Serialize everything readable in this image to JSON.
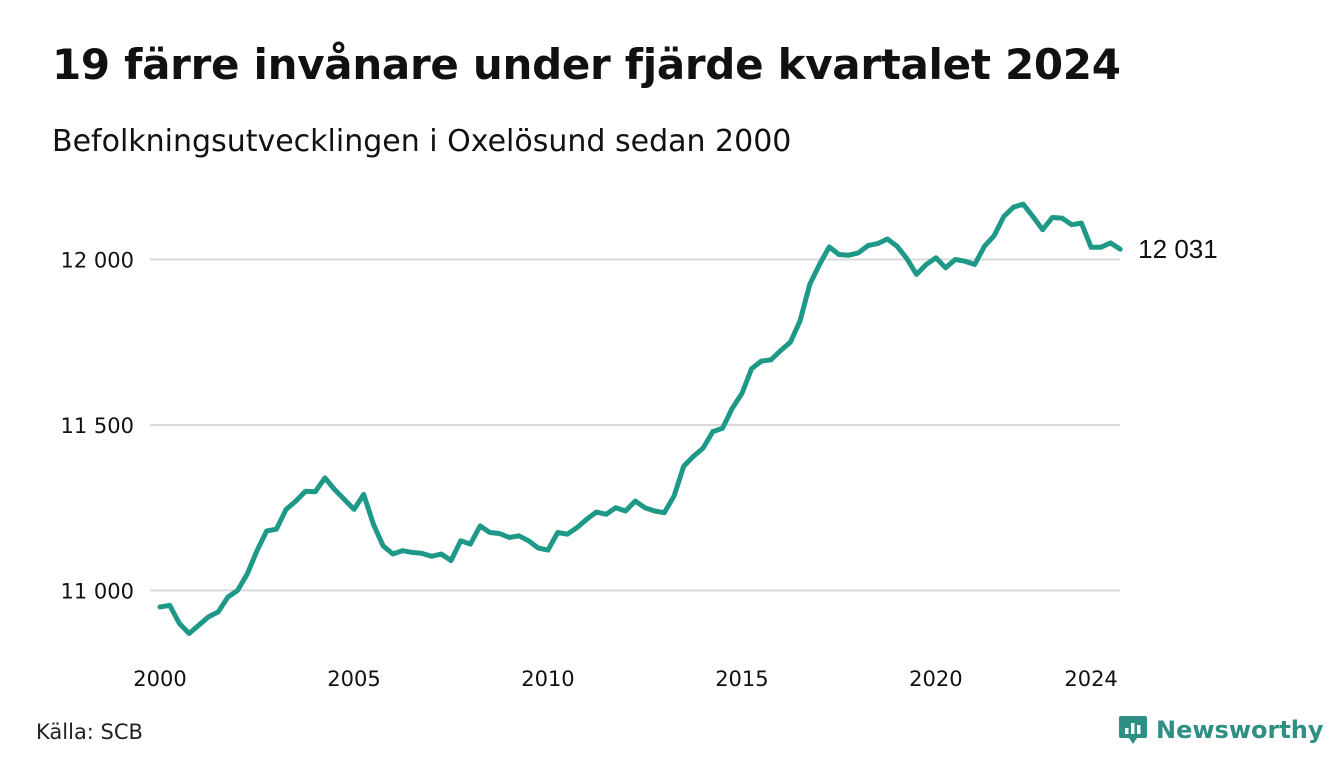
{
  "title": "19 färre invånare under fjärde kvartalet 2024",
  "subtitle": "Befolkningsutvecklingen i Oxelösund sedan 2000",
  "source": "Källa: SCB",
  "brand": {
    "name": "Newsworthy",
    "icon": "newsworthy-logo-icon",
    "color": "#2f8f84"
  },
  "colors": {
    "line": "#1e9988",
    "grid": "#d9d9d9",
    "text": "#111111"
  },
  "chart_data": {
    "type": "line",
    "title": "19 färre invånare under fjärde kvartalet 2024",
    "subtitle": "Befolkningsutvecklingen i Oxelösund sedan 2000",
    "xlabel": "",
    "ylabel": "",
    "x_ticks": [
      2000,
      2005,
      2010,
      2015,
      2020,
      2024
    ],
    "y_ticks": [
      {
        "value": 11000,
        "label": "11 000"
      },
      {
        "value": 11500,
        "label": "11 500"
      },
      {
        "value": 12000,
        "label": "12 000"
      }
    ],
    "xlim": [
      2000,
      2024.9
    ],
    "ylim": [
      10820,
      12210
    ],
    "grid": "horizontal",
    "end_label": "12 031",
    "series": [
      {
        "x": [
          2000.0,
          2000.25,
          2000.5,
          2000.75,
          2001.0,
          2001.25,
          2001.5,
          2001.75,
          2002.0,
          2002.25,
          2002.5,
          2002.75,
          2003.0,
          2003.25,
          2003.5,
          2003.75,
          2004.0,
          2004.25,
          2004.5,
          2004.75,
          2005.0,
          2005.25,
          2005.5,
          2005.75,
          2006.0,
          2006.25,
          2006.5,
          2006.75,
          2007.0,
          2007.25,
          2007.5,
          2007.75,
          2008.0,
          2008.25,
          2008.5,
          2008.75,
          2009.0,
          2009.25,
          2009.5,
          2009.75,
          2010.0,
          2010.25,
          2010.5,
          2010.75,
          2011.0,
          2011.25,
          2011.5,
          2011.75,
          2012.0,
          2012.25,
          2012.5,
          2012.75,
          2013.0,
          2013.25,
          2013.5,
          2013.75,
          2014.0,
          2014.25,
          2014.5,
          2014.75,
          2015.0,
          2015.25,
          2015.5,
          2015.75,
          2016.0,
          2016.25,
          2016.5,
          2016.75,
          2017.0,
          2017.25,
          2017.5,
          2017.75,
          2018.0,
          2018.25,
          2018.5,
          2018.75,
          2019.0,
          2019.25,
          2019.5,
          2019.75,
          2020.0,
          2020.25,
          2020.5,
          2020.75,
          2021.0,
          2021.25,
          2021.5,
          2021.75,
          2022.0,
          2022.25,
          2022.5,
          2022.75,
          2023.0,
          2023.25,
          2023.5,
          2023.75,
          2024.0,
          2024.25,
          2024.5,
          2024.75
        ],
        "values": [
          10950,
          10955,
          10900,
          10870,
          10895,
          10920,
          10935,
          10980,
          11000,
          11050,
          11120,
          11180,
          11185,
          11245,
          11270,
          11300,
          11298,
          11340,
          11305,
          11275,
          11245,
          11290,
          11200,
          11135,
          11110,
          11120,
          11115,
          11112,
          11103,
          11110,
          11090,
          11150,
          11140,
          11195,
          11175,
          11172,
          11160,
          11165,
          11150,
          11128,
          11122,
          11175,
          11170,
          11190,
          11215,
          11237,
          11230,
          11250,
          11240,
          11270,
          11250,
          11240,
          11235,
          11285,
          11375,
          11405,
          11430,
          11480,
          11490,
          11550,
          11595,
          11670,
          11693,
          11697,
          11725,
          11750,
          11815,
          11925,
          11985,
          12038,
          12015,
          12013,
          12020,
          12042,
          12048,
          12062,
          12040,
          12003,
          11955,
          11985,
          12005,
          11975,
          12000,
          11995,
          11985,
          12040,
          12072,
          12130,
          12158,
          12167,
          12130,
          12090,
          12127,
          12125,
          12105,
          12110,
          12037,
          12037,
          12050,
          12031
        ]
      }
    ]
  }
}
